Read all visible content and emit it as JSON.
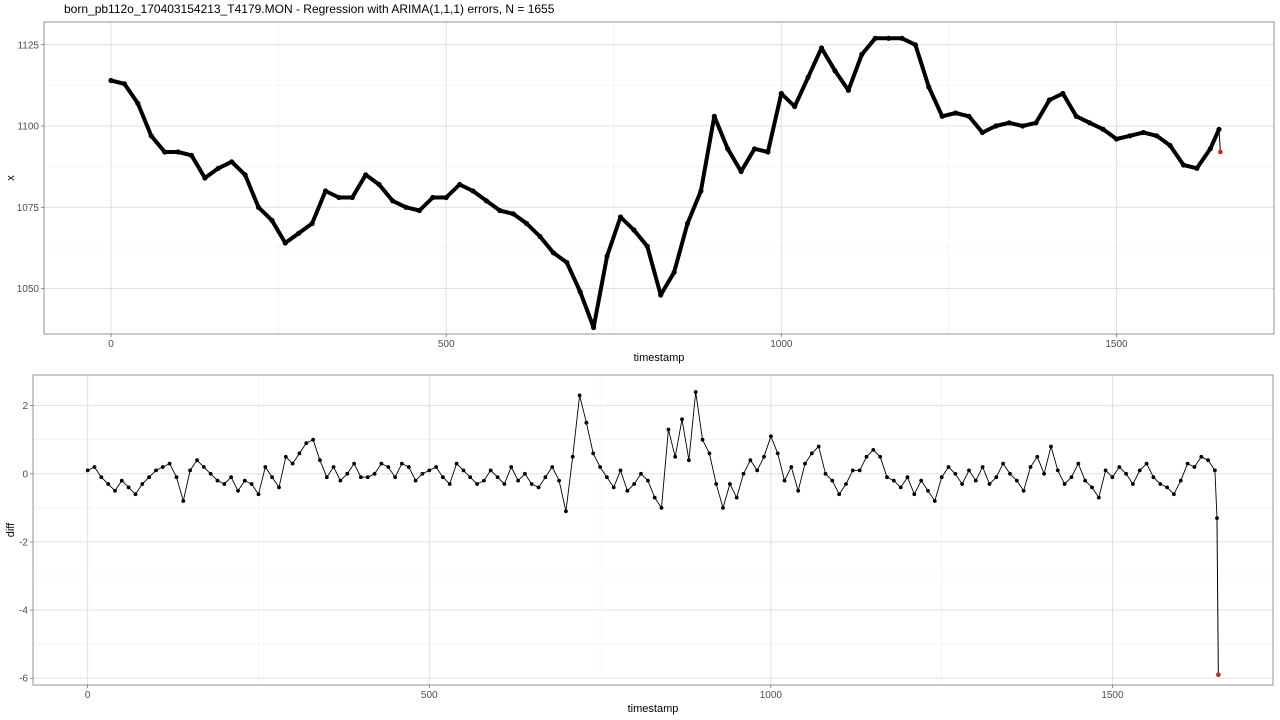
{
  "title": "born_pb112o_170403154213_T4179.MON - Regression with ARIMA(1,1,1) errors, N = 1655",
  "colors": {
    "series": "#000000",
    "highlight": "#e41a1c",
    "grid": "#e0e0e0"
  },
  "chart_data": [
    {
      "type": "scatter",
      "xlabel": "timestamp",
      "ylabel": "x",
      "xlim": [
        -100,
        1735
      ],
      "ylim": [
        1036,
        1132
      ],
      "x_ticks": [
        0,
        500,
        1000,
        1500
      ],
      "y_ticks": [
        1050,
        1075,
        1100,
        1125
      ],
      "grid": true,
      "series": [
        {
          "x": [
            0,
            20,
            40,
            60,
            80,
            100,
            120,
            140,
            160,
            180,
            200,
            220,
            240,
            260,
            280,
            300,
            320,
            340,
            360,
            380,
            400,
            420,
            440,
            460,
            480,
            500,
            520,
            540,
            560,
            580,
            600,
            620,
            640,
            660,
            680,
            700,
            720,
            740,
            760,
            780,
            800,
            820,
            840,
            860,
            880,
            900,
            920,
            940,
            960,
            980,
            1000,
            1020,
            1040,
            1060,
            1080,
            1100,
            1120,
            1140,
            1160,
            1180,
            1200,
            1220,
            1240,
            1260,
            1280,
            1300,
            1320,
            1340,
            1360,
            1380,
            1400,
            1420,
            1440,
            1460,
            1480,
            1500,
            1520,
            1540,
            1560,
            1580,
            1600,
            1620,
            1640,
            1653
          ],
          "y": [
            1114,
            1113,
            1107,
            1097,
            1092,
            1092,
            1091,
            1084,
            1087,
            1089,
            1085,
            1075,
            1071,
            1064,
            1067,
            1070,
            1080,
            1078,
            1078,
            1085,
            1082,
            1077,
            1075,
            1074,
            1078,
            1078,
            1082,
            1080,
            1077,
            1074,
            1073,
            1070,
            1066,
            1061,
            1058,
            1049,
            1038,
            1060,
            1072,
            1068,
            1063,
            1048,
            1055,
            1070,
            1080,
            1103,
            1093,
            1086,
            1093,
            1092,
            1110,
            1106,
            1115,
            1124,
            1117,
            1111,
            1122,
            1127,
            1127,
            1127,
            1125,
            1112,
            1103,
            1104,
            1103,
            1098,
            1100,
            1101,
            1100,
            1101,
            1108,
            1110,
            1103,
            1101,
            1099,
            1096,
            1097,
            1098,
            1097,
            1094,
            1088,
            1087,
            1093,
            1099
          ]
        },
        {
          "x": [
            1655
          ],
          "y": [
            1092
          ]
        }
      ]
    },
    {
      "type": "line",
      "xlabel": "timestamp",
      "ylabel": "diff",
      "xlim": [
        -80,
        1735
      ],
      "ylim": [
        -6.2,
        2.9
      ],
      "x_ticks": [
        0,
        500,
        1000,
        1500
      ],
      "y_ticks": [
        -6,
        -4,
        -2,
        0,
        2
      ],
      "grid": true,
      "series": [
        {
          "x": [
            0,
            10,
            20,
            30,
            40,
            50,
            60,
            70,
            80,
            90,
            100,
            110,
            120,
            130,
            140,
            150,
            160,
            170,
            180,
            190,
            200,
            210,
            220,
            230,
            240,
            250,
            260,
            270,
            280,
            290,
            300,
            310,
            320,
            330,
            340,
            350,
            360,
            370,
            380,
            390,
            400,
            410,
            420,
            430,
            440,
            450,
            460,
            470,
            480,
            490,
            500,
            510,
            520,
            530,
            540,
            550,
            560,
            570,
            580,
            590,
            600,
            610,
            620,
            630,
            640,
            650,
            660,
            670,
            680,
            690,
            700,
            710,
            720,
            730,
            740,
            750,
            760,
            770,
            780,
            790,
            800,
            810,
            820,
            830,
            840,
            850,
            860,
            870,
            880,
            890,
            900,
            910,
            920,
            930,
            940,
            950,
            960,
            970,
            980,
            990,
            1000,
            1010,
            1020,
            1030,
            1040,
            1050,
            1060,
            1070,
            1080,
            1090,
            1100,
            1110,
            1120,
            1130,
            1140,
            1150,
            1160,
            1170,
            1180,
            1190,
            1200,
            1210,
            1220,
            1230,
            1240,
            1250,
            1260,
            1270,
            1280,
            1290,
            1300,
            1310,
            1320,
            1330,
            1340,
            1350,
            1360,
            1370,
            1380,
            1390,
            1400,
            1410,
            1420,
            1430,
            1440,
            1450,
            1460,
            1470,
            1480,
            1490,
            1500,
            1510,
            1520,
            1530,
            1540,
            1550,
            1560,
            1570,
            1580,
            1590,
            1600,
            1610,
            1620,
            1630,
            1640,
            1650,
            1653
          ],
          "y": [
            0.1,
            0.2,
            -0.1,
            -0.3,
            -0.5,
            -0.2,
            -0.4,
            -0.6,
            -0.3,
            -0.1,
            0.1,
            0.2,
            0.3,
            -0.1,
            -0.8,
            0.1,
            0.4,
            0.2,
            0.0,
            -0.2,
            -0.3,
            -0.1,
            -0.5,
            -0.2,
            -0.3,
            -0.6,
            0.2,
            -0.1,
            -0.4,
            0.5,
            0.3,
            0.6,
            0.9,
            1.0,
            0.4,
            -0.1,
            0.2,
            -0.2,
            0.0,
            0.3,
            -0.1,
            -0.1,
            0.0,
            0.3,
            0.2,
            -0.1,
            0.3,
            0.2,
            -0.2,
            0.0,
            0.1,
            0.2,
            -0.1,
            -0.3,
            0.3,
            0.1,
            -0.1,
            -0.3,
            -0.2,
            0.1,
            -0.1,
            -0.3,
            0.2,
            -0.2,
            0.0,
            -0.3,
            -0.4,
            -0.1,
            0.2,
            -0.2,
            -1.1,
            0.5,
            2.3,
            1.5,
            0.6,
            0.2,
            -0.1,
            -0.4,
            0.1,
            -0.5,
            -0.3,
            0.0,
            -0.2,
            -0.7,
            -1.0,
            1.3,
            0.5,
            1.6,
            0.4,
            2.4,
            1.0,
            0.6,
            -0.3,
            -1.0,
            -0.3,
            -0.7,
            0.0,
            0.4,
            0.1,
            0.5,
            1.1,
            0.6,
            -0.2,
            0.2,
            -0.5,
            0.3,
            0.6,
            0.8,
            0.0,
            -0.2,
            -0.6,
            -0.3,
            0.1,
            0.1,
            0.5,
            0.7,
            0.5,
            -0.1,
            -0.2,
            -0.4,
            -0.1,
            -0.6,
            -0.2,
            -0.5,
            -0.8,
            -0.1,
            0.2,
            0.0,
            -0.3,
            0.1,
            -0.2,
            0.2,
            -0.3,
            -0.1,
            0.3,
            0.0,
            -0.2,
            -0.5,
            0.2,
            0.5,
            0.0,
            0.8,
            0.1,
            -0.3,
            -0.1,
            0.3,
            -0.2,
            -0.4,
            -0.7,
            0.1,
            -0.1,
            0.2,
            0.0,
            -0.3,
            0.1,
            0.3,
            -0.1,
            -0.3,
            -0.4,
            -0.6,
            -0.2,
            0.3,
            0.2,
            0.5,
            0.4,
            0.1,
            -1.3
          ]
        },
        {
          "x": [
            1655
          ],
          "y": [
            -5.9
          ]
        }
      ]
    }
  ]
}
